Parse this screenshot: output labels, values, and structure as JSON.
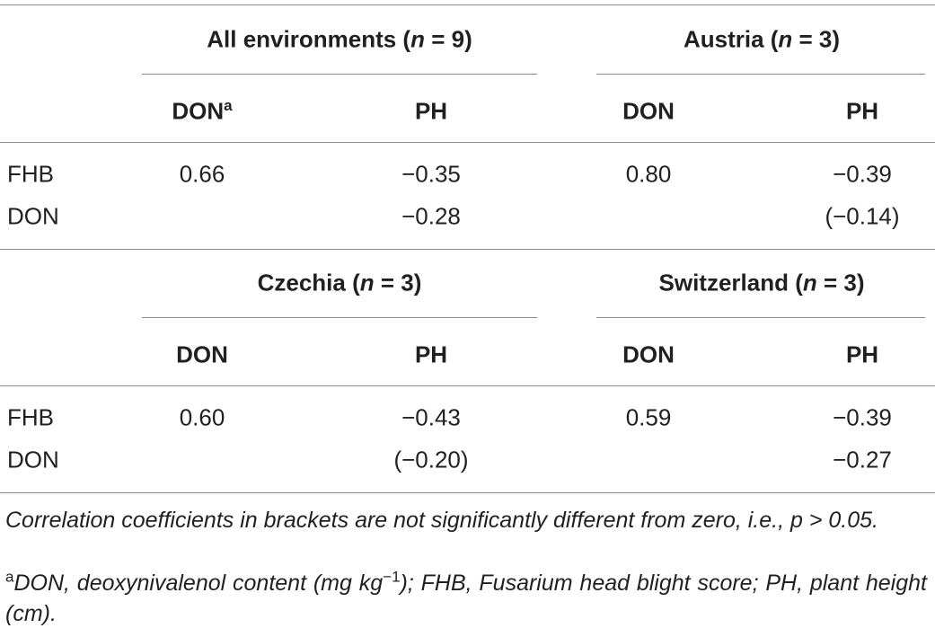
{
  "blocks": [
    {
      "groups": [
        [
          "All environments (",
          "n",
          " = 9)"
        ],
        [
          "Austria (",
          "n",
          " = 3)"
        ]
      ],
      "subheaders": [
        [
          "DON",
          "a"
        ],
        [
          "PH"
        ],
        [
          "DON"
        ],
        [
          "PH"
        ]
      ],
      "rows": [
        {
          "label": "FHB",
          "cells": [
            "0.66",
            "−0.35",
            "0.80",
            "−0.39"
          ]
        },
        {
          "label": "DON",
          "cells": [
            null,
            "−0.28",
            null,
            "(−0.14)"
          ]
        }
      ]
    },
    {
      "groups": [
        [
          "Czechia (",
          "n",
          " = 3)"
        ],
        [
          "Switzerland (",
          "n",
          " = 3)"
        ]
      ],
      "subheaders": [
        [
          "DON"
        ],
        [
          "PH"
        ],
        [
          "DON"
        ],
        [
          "PH"
        ]
      ],
      "rows": [
        {
          "label": "FHB",
          "cells": [
            "0.60",
            "−0.43",
            "0.59",
            "−0.39"
          ]
        },
        {
          "label": "DON",
          "cells": [
            null,
            "(−0.20)",
            null,
            "−0.27"
          ]
        }
      ]
    }
  ],
  "footnotes": [
    [
      "Correlation coefficients in brackets are not significantly different from zero, i.e., p > 0.05."
    ],
    [
      "a",
      "DON, deoxynivalenol content (mg kg",
      "−1",
      "); FHB, Fusarium head blight score; PH, plant height (cm)."
    ]
  ]
}
